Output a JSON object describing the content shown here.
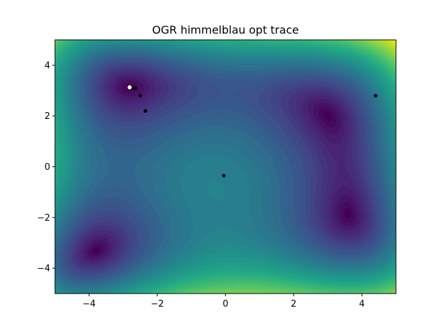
{
  "chart_data": {
    "type": "contour",
    "title": "OGR himmelblau opt trace",
    "function": "himmelblau",
    "xlabel": "",
    "ylabel": "",
    "xlim": [
      -5,
      5
    ],
    "ylim": [
      -5,
      5
    ],
    "x_ticks": [
      -4,
      -2,
      0,
      2,
      4
    ],
    "y_ticks": [
      -4,
      -2,
      0,
      2,
      4
    ],
    "x_tick_labels": [
      "−4",
      "−2",
      "0",
      "2",
      "4"
    ],
    "y_tick_labels": [
      "−4",
      "−2",
      "0",
      "2",
      "4"
    ],
    "colormap": "viridis",
    "grid": false,
    "trace_points": [
      {
        "x": 4.4,
        "y": 2.8
      },
      {
        "x": -0.05,
        "y": -0.35
      },
      {
        "x": -2.35,
        "y": 2.2
      },
      {
        "x": -2.5,
        "y": 2.8
      },
      {
        "x": -2.65,
        "y": 3.1
      },
      {
        "x": -2.75,
        "y": 3.12
      },
      {
        "x": -2.8,
        "y": 3.13
      }
    ],
    "final_point": {
      "x": -2.81,
      "y": 3.13
    },
    "trace_color": "#000000",
    "final_color": "#ffffff"
  }
}
